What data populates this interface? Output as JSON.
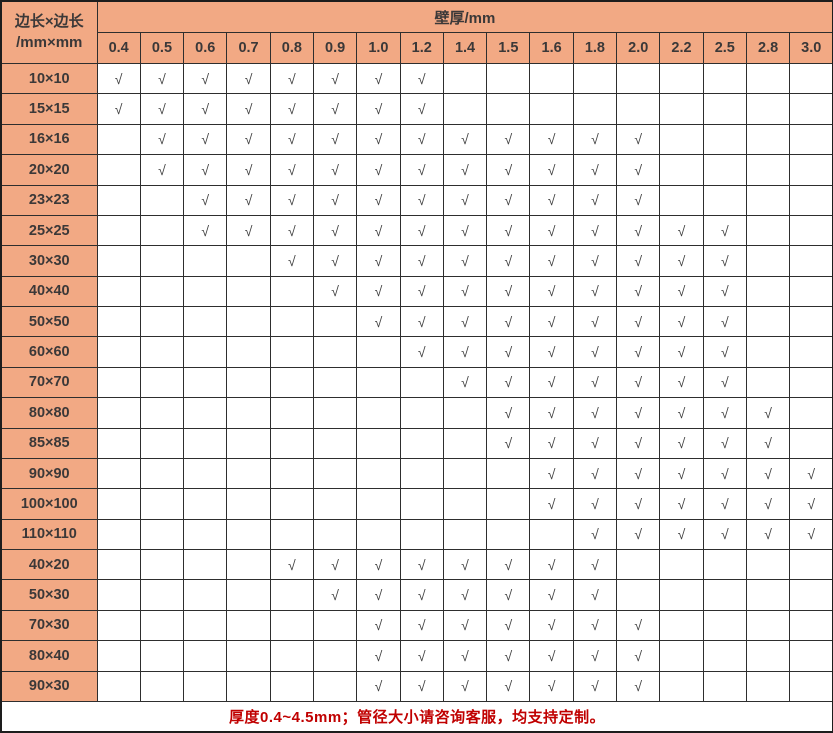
{
  "table": {
    "corner_header_line1": "边长×边长",
    "corner_header_line2": "/mm×mm",
    "thickness_header": "壁厚/mm",
    "check_symbol": "√",
    "columns": [
      "0.4",
      "0.5",
      "0.6",
      "0.7",
      "0.8",
      "0.9",
      "1.0",
      "1.2",
      "1.4",
      "1.5",
      "1.6",
      "1.8",
      "2.0",
      "2.2",
      "2.5",
      "2.8",
      "3.0"
    ],
    "rows": [
      {
        "size": "10×10",
        "cells": [
          1,
          1,
          1,
          1,
          1,
          1,
          1,
          1,
          0,
          0,
          0,
          0,
          0,
          0,
          0,
          0,
          0
        ]
      },
      {
        "size": "15×15",
        "cells": [
          1,
          1,
          1,
          1,
          1,
          1,
          1,
          1,
          0,
          0,
          0,
          0,
          0,
          0,
          0,
          0,
          0
        ]
      },
      {
        "size": "16×16",
        "cells": [
          0,
          1,
          1,
          1,
          1,
          1,
          1,
          1,
          1,
          1,
          1,
          1,
          1,
          0,
          0,
          0,
          0
        ]
      },
      {
        "size": "20×20",
        "cells": [
          0,
          1,
          1,
          1,
          1,
          1,
          1,
          1,
          1,
          1,
          1,
          1,
          1,
          0,
          0,
          0,
          0
        ]
      },
      {
        "size": "23×23",
        "cells": [
          0,
          0,
          1,
          1,
          1,
          1,
          1,
          1,
          1,
          1,
          1,
          1,
          1,
          0,
          0,
          0,
          0
        ]
      },
      {
        "size": "25×25",
        "cells": [
          0,
          0,
          1,
          1,
          1,
          1,
          1,
          1,
          1,
          1,
          1,
          1,
          1,
          1,
          1,
          0,
          0
        ]
      },
      {
        "size": "30×30",
        "cells": [
          0,
          0,
          0,
          0,
          1,
          1,
          1,
          1,
          1,
          1,
          1,
          1,
          1,
          1,
          1,
          0,
          0
        ]
      },
      {
        "size": "40×40",
        "cells": [
          0,
          0,
          0,
          0,
          0,
          1,
          1,
          1,
          1,
          1,
          1,
          1,
          1,
          1,
          1,
          0,
          0
        ]
      },
      {
        "size": "50×50",
        "cells": [
          0,
          0,
          0,
          0,
          0,
          0,
          1,
          1,
          1,
          1,
          1,
          1,
          1,
          1,
          1,
          0,
          0
        ]
      },
      {
        "size": "60×60",
        "cells": [
          0,
          0,
          0,
          0,
          0,
          0,
          0,
          1,
          1,
          1,
          1,
          1,
          1,
          1,
          1,
          0,
          0
        ]
      },
      {
        "size": "70×70",
        "cells": [
          0,
          0,
          0,
          0,
          0,
          0,
          0,
          0,
          1,
          1,
          1,
          1,
          1,
          1,
          1,
          0,
          0
        ]
      },
      {
        "size": "80×80",
        "cells": [
          0,
          0,
          0,
          0,
          0,
          0,
          0,
          0,
          0,
          1,
          1,
          1,
          1,
          1,
          1,
          1,
          0
        ]
      },
      {
        "size": "85×85",
        "cells": [
          0,
          0,
          0,
          0,
          0,
          0,
          0,
          0,
          0,
          1,
          1,
          1,
          1,
          1,
          1,
          1,
          0
        ]
      },
      {
        "size": "90×90",
        "cells": [
          0,
          0,
          0,
          0,
          0,
          0,
          0,
          0,
          0,
          0,
          1,
          1,
          1,
          1,
          1,
          1,
          1
        ]
      },
      {
        "size": "100×100",
        "cells": [
          0,
          0,
          0,
          0,
          0,
          0,
          0,
          0,
          0,
          0,
          1,
          1,
          1,
          1,
          1,
          1,
          1
        ]
      },
      {
        "size": "110×110",
        "cells": [
          0,
          0,
          0,
          0,
          0,
          0,
          0,
          0,
          0,
          0,
          0,
          1,
          1,
          1,
          1,
          1,
          1
        ]
      },
      {
        "size": "40×20",
        "cells": [
          0,
          0,
          0,
          0,
          1,
          1,
          1,
          1,
          1,
          1,
          1,
          1,
          0,
          0,
          0,
          0,
          0
        ]
      },
      {
        "size": "50×30",
        "cells": [
          0,
          0,
          0,
          0,
          0,
          1,
          1,
          1,
          1,
          1,
          1,
          1,
          0,
          0,
          0,
          0,
          0
        ]
      },
      {
        "size": "70×30",
        "cells": [
          0,
          0,
          0,
          0,
          0,
          0,
          1,
          1,
          1,
          1,
          1,
          1,
          1,
          0,
          0,
          0,
          0
        ]
      },
      {
        "size": "80×40",
        "cells": [
          0,
          0,
          0,
          0,
          0,
          0,
          1,
          1,
          1,
          1,
          1,
          1,
          1,
          0,
          0,
          0,
          0
        ]
      },
      {
        "size": "90×30",
        "cells": [
          0,
          0,
          0,
          0,
          0,
          0,
          1,
          1,
          1,
          1,
          1,
          1,
          1,
          0,
          0,
          0,
          0
        ]
      }
    ],
    "footer_note": "厚度0.4~4.5mm；管径大小请咨询客服，均支持定制。"
  },
  "colors": {
    "header_fill": "#f2a984",
    "header_text": "#3b3838",
    "grid_border": "#2e2e2e",
    "check_mark": "#3f3f3f",
    "footer_text": "#c00000",
    "cell_fill": "#ffffff"
  }
}
